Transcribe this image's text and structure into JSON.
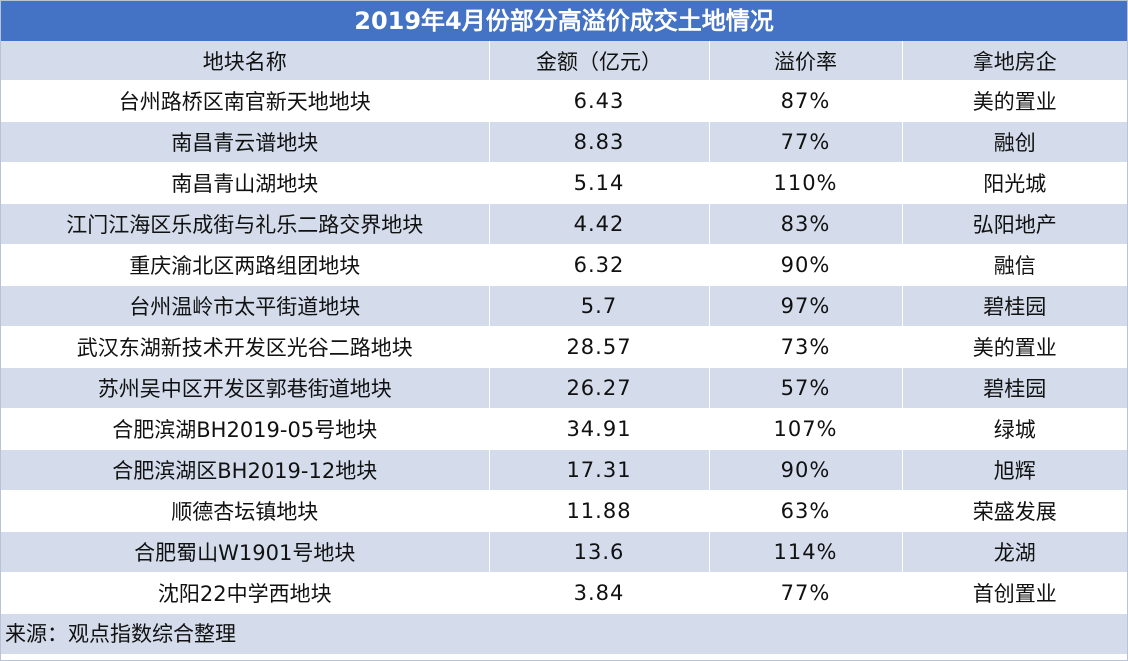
{
  "title": "2019年4月份部分高溢价成交土地情况",
  "columns": [
    "地块名称",
    "金额（亿元）",
    "溢价率",
    "拿地房企"
  ],
  "rows": [
    [
      "台州路桥区南官新天地地块",
      "6.43",
      "87%",
      "美的置业"
    ],
    [
      "南昌青云谱地块",
      "8.83",
      "77%",
      "融创"
    ],
    [
      "南昌青山湖地块",
      "5.14",
      "110%",
      "阳光城"
    ],
    [
      "江门江海区乐成街与礼乐二路交界地块",
      "4.42",
      "83%",
      "弘阳地产"
    ],
    [
      "重庆渝北区两路组团地块",
      "6.32",
      "90%",
      "融信"
    ],
    [
      "台州温岭市太平街道地块",
      "5.7",
      "97%",
      "碧桂园"
    ],
    [
      "武汉东湖新技术开发区光谷二路地块",
      "28.57",
      "73%",
      "美的置业"
    ],
    [
      "苏州吴中区开发区郭巷街道地块",
      "26.27",
      "57%",
      "碧桂园"
    ],
    [
      "合肥滨湖BH2019-05号地块",
      "34.91",
      "107%",
      "绿城"
    ],
    [
      "合肥滨湖区BH2019-12地块",
      "17.31",
      "90%",
      "旭辉"
    ],
    [
      "顺德杏坛镇地块",
      "11.88",
      "63%",
      "荣盛发展"
    ],
    [
      "合肥蜀山W1901号地块",
      "13.6",
      "114%",
      "龙湖"
    ],
    [
      "沈阳22中学西地块",
      "3.84",
      "77%",
      "首创置业"
    ]
  ],
  "source": "来源：观点指数综合整理",
  "colors": {
    "title_bg": "#4472c4",
    "band_bg": "#d4dcec",
    "text": "#111111"
  }
}
